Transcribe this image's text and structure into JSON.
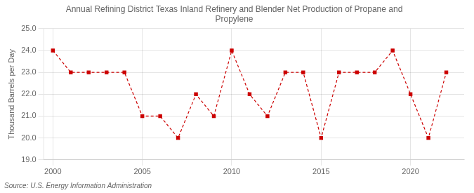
{
  "chart_data": {
    "type": "line",
    "title": "Annual Refining District Texas Inland Refinery and Blender Net Production of Propane and\nPropylene",
    "ylabel": "Thousand Barrels per Day",
    "annotations": [
      "Source: U.S. Energy Information Administration"
    ],
    "x": [
      2000,
      2001,
      2002,
      2003,
      2004,
      2005,
      2006,
      2007,
      2008,
      2009,
      2010,
      2011,
      2012,
      2013,
      2014,
      2015,
      2016,
      2017,
      2018,
      2019,
      2020,
      2021,
      2022
    ],
    "values": [
      24.0,
      23.0,
      23.0,
      23.0,
      23.0,
      21.0,
      21.0,
      20.0,
      22.0,
      21.0,
      24.0,
      22.0,
      21.0,
      23.0,
      23.0,
      20.0,
      23.0,
      23.0,
      23.0,
      24.0,
      22.0,
      20.0,
      23.0
    ],
    "color": "#cc0000",
    "marker": "square",
    "line_style": "dashed",
    "xlim": [
      1999.5,
      2023.0
    ],
    "ylim": [
      19.0,
      25.0
    ],
    "xticks": [
      2000,
      2005,
      2010,
      2015,
      2020
    ],
    "yticks": [
      {
        "value": 19.0,
        "label": "19.0"
      },
      {
        "value": 20.0,
        "label": "20.0"
      },
      {
        "value": 21.0,
        "label": "21.0"
      },
      {
        "value": 22.0,
        "label": "22.0"
      },
      {
        "value": 23.0,
        "label": "23.0"
      },
      {
        "value": 24.0,
        "label": "24.0"
      },
      {
        "value": 25.0,
        "label": "25.0"
      }
    ],
    "grid": true
  }
}
